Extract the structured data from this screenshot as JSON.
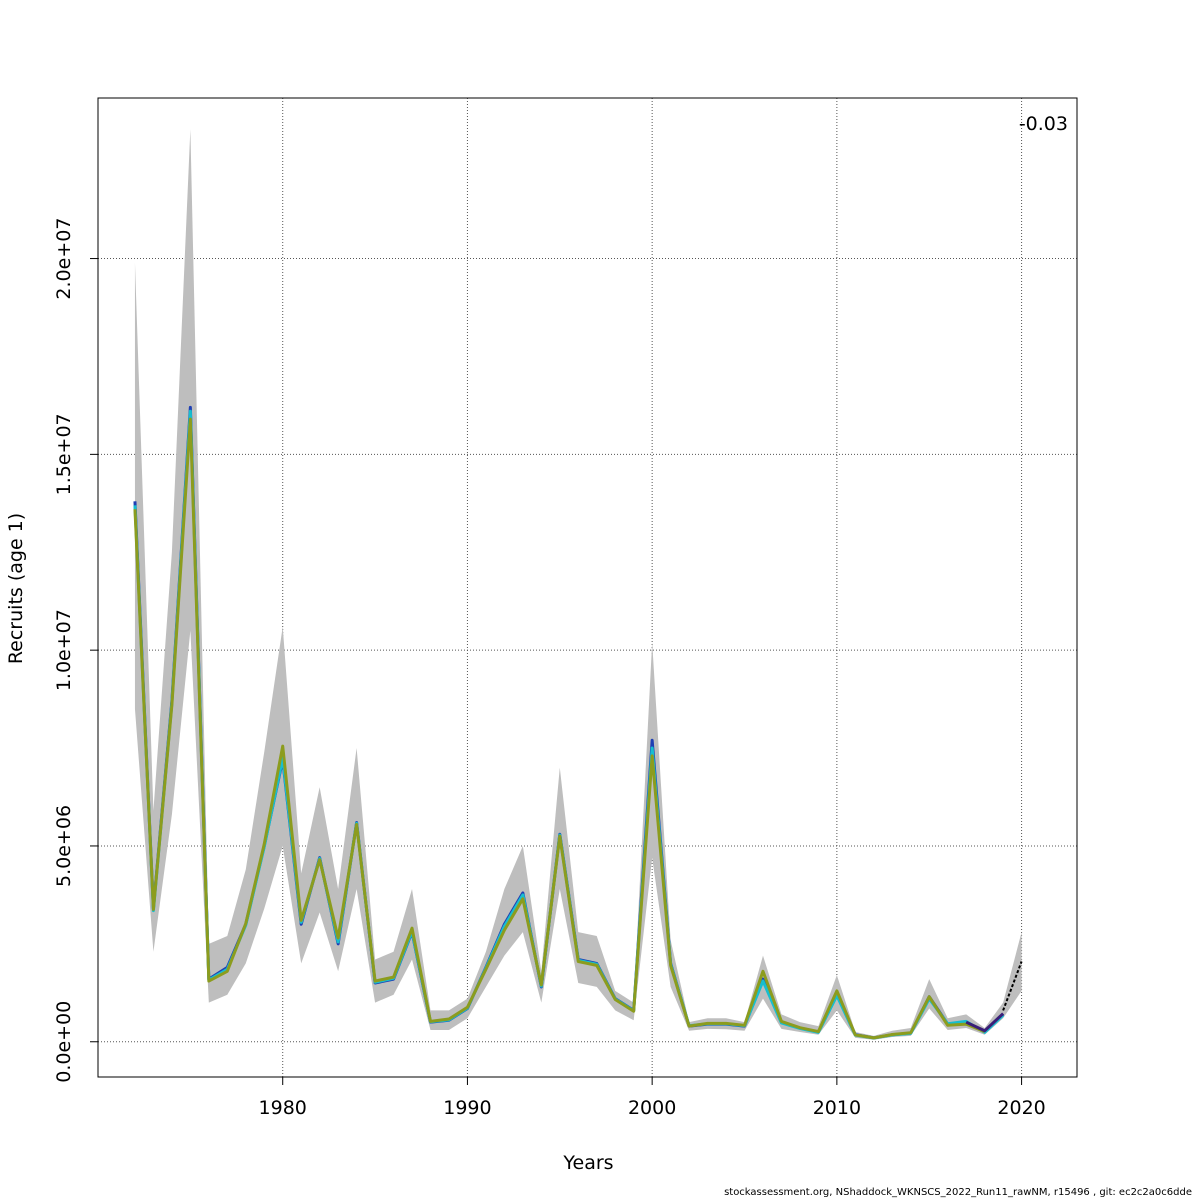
{
  "chart_data": {
    "type": "line",
    "xlabel": "Years",
    "ylabel": "Recruits (age 1)",
    "annotation": "-0.03",
    "xlim": [
      1970,
      2023
    ],
    "ylim": [
      -900000,
      24100000
    ],
    "x_ticks": [
      1980,
      1990,
      2000,
      2010,
      2020
    ],
    "x_tick_labels": [
      "1980",
      "1990",
      "2000",
      "2010",
      "2020"
    ],
    "y_ticks": [
      0,
      5000000,
      10000000,
      15000000,
      20000000
    ],
    "y_tick_labels": [
      "0.0e+00",
      "5.0e+06",
      "1.0e+07",
      "1.5e+07",
      "2.0e+07"
    ],
    "grid": true,
    "confidence_band": {
      "name": "confidence interval",
      "color": "#bebebe",
      "x": [
        1972,
        1973,
        1974,
        1975,
        1976,
        1977,
        1978,
        1979,
        1980,
        1981,
        1982,
        1983,
        1984,
        1985,
        1986,
        1987,
        1988,
        1989,
        1990,
        1991,
        1992,
        1993,
        1994,
        1995,
        1996,
        1997,
        1998,
        1999,
        2000,
        2001,
        2002,
        2003,
        2004,
        2005,
        2006,
        2007,
        2008,
        2009,
        2010,
        2011,
        2012,
        2013,
        2014,
        2015,
        2016,
        2017,
        2018,
        2019,
        2020
      ],
      "upper": [
        19900000,
        5900000,
        12500000,
        23300000,
        2500000,
        2700000,
        4400000,
        7400000,
        10600000,
        4300000,
        6500000,
        3900000,
        7500000,
        2100000,
        2300000,
        3900000,
        800000,
        800000,
        1100000,
        2300000,
        3900000,
        5000000,
        1800000,
        7000000,
        2800000,
        2700000,
        1300000,
        1000000,
        10200000,
        2600000,
        500000,
        600000,
        600000,
        500000,
        2200000,
        700000,
        500000,
        400000,
        1700000,
        250000,
        150000,
        280000,
        350000,
        1600000,
        600000,
        700000,
        350000,
        1000000,
        2800000
      ],
      "lower": [
        8500000,
        2300000,
        5800000,
        10500000,
        1000000,
        1200000,
        2000000,
        3400000,
        5000000,
        2000000,
        3300000,
        1800000,
        3900000,
        1000000,
        1200000,
        2100000,
        300000,
        300000,
        600000,
        1400000,
        2200000,
        2800000,
        1000000,
        3900000,
        1500000,
        1400000,
        800000,
        550000,
        4700000,
        1400000,
        280000,
        330000,
        320000,
        280000,
        1100000,
        330000,
        250000,
        180000,
        800000,
        100000,
        50000,
        120000,
        150000,
        850000,
        300000,
        350000,
        180000,
        600000,
        1300000
      ]
    },
    "series": [
      {
        "name": "blue",
        "color": "#1f3fb4",
        "x": [
          1972,
          1973,
          1974,
          1975,
          1976,
          1977,
          1978,
          1979,
          1980,
          1981,
          1982,
          1983,
          1984,
          1985,
          1986,
          1987,
          1988,
          1989,
          1990,
          1991,
          1992,
          1993,
          1994,
          1995,
          1996,
          1997,
          1998,
          1999,
          2000,
          2001,
          2002,
          2003,
          2004,
          2005,
          2006,
          2007,
          2008,
          2009,
          2010,
          2011,
          2012,
          2013,
          2014,
          2015,
          2016,
          2017,
          2018,
          2019
        ],
        "values": [
          13800000,
          3400000,
          8700000,
          16200000,
          1600000,
          1900000,
          3000000,
          5000000,
          7200000,
          3000000,
          4700000,
          2500000,
          5600000,
          1500000,
          1600000,
          2800000,
          500000,
          550000,
          850000,
          1900000,
          3000000,
          3800000,
          1400000,
          5300000,
          2100000,
          2000000,
          1100000,
          800000,
          7700000,
          2000000,
          400000,
          450000,
          450000,
          400000,
          1600000,
          500000,
          350000,
          250000,
          1200000,
          180000,
          100000,
          180000,
          220000,
          1150000,
          450000,
          500000,
          250000,
          700000
        ]
      },
      {
        "name": "cyan",
        "color": "#17becf",
        "x": [
          1972,
          1973,
          1974,
          1975,
          1976,
          1977,
          1978,
          1979,
          1980,
          1981,
          1982,
          1983,
          1984,
          1985,
          1986,
          1987,
          1988,
          1989,
          1990,
          1991,
          1992,
          1993,
          1994,
          1995,
          1996,
          1997,
          1998,
          1999,
          2000,
          2001,
          2002,
          2003,
          2004,
          2005,
          2006,
          2007,
          2008,
          2009,
          2010,
          2011,
          2012,
          2013,
          2014,
          2015,
          2016,
          2017,
          2018,
          2019
        ],
        "values": [
          13700000,
          3350000,
          8650000,
          16100000,
          1580000,
          1850000,
          2980000,
          4980000,
          7250000,
          3050000,
          4680000,
          2550000,
          5580000,
          1520000,
          1620000,
          2820000,
          510000,
          560000,
          860000,
          1880000,
          2950000,
          3750000,
          1420000,
          5280000,
          2080000,
          1980000,
          1090000,
          790000,
          7500000,
          1980000,
          410000,
          460000,
          460000,
          410000,
          1550000,
          480000,
          340000,
          240000,
          1180000,
          170000,
          95000,
          175000,
          215000,
          1100000,
          460000,
          520000,
          240000,
          680000
        ]
      },
      {
        "name": "olive",
        "color": "#8c9c1e",
        "x": [
          1972,
          1973,
          1974,
          1975,
          1976,
          1977,
          1978,
          1979,
          1980,
          1981,
          1982,
          1983,
          1984,
          1985,
          1986,
          1987,
          1988,
          1989,
          1990,
          1991,
          1992,
          1993,
          1994,
          1995,
          1996,
          1997,
          1998,
          1999,
          2000,
          2001,
          2002,
          2003,
          2004,
          2005,
          2006,
          2007,
          2008,
          2009,
          2010,
          2011,
          2012,
          2013,
          2014,
          2015,
          2016,
          2017,
          2018
        ],
        "values": [
          13600000,
          3380000,
          8600000,
          15900000,
          1550000,
          1800000,
          3020000,
          5050000,
          7550000,
          3100000,
          4650000,
          2650000,
          5550000,
          1550000,
          1650000,
          2900000,
          520000,
          580000,
          880000,
          1850000,
          2850000,
          3650000,
          1450000,
          5250000,
          2050000,
          1950000,
          1080000,
          780000,
          7300000,
          1950000,
          400000,
          470000,
          470000,
          420000,
          1800000,
          520000,
          360000,
          260000,
          1300000,
          175000,
          100000,
          185000,
          230000,
          1150000,
          420000,
          450000,
          260000
        ]
      },
      {
        "name": "purple",
        "color": "#3a1e78",
        "x": [
          2017,
          2018,
          2019
        ],
        "values": [
          500000,
          280000,
          720000
        ]
      },
      {
        "name": "black",
        "color": "#000000",
        "x": [
          2019,
          2020
        ],
        "values": [
          800000,
          2050000
        ]
      }
    ]
  },
  "footer": "stockassessment.org, NShaddock_WKNSCS_2022_Run11_rawNM, r15496 , git: ec2c2a0c6dde"
}
